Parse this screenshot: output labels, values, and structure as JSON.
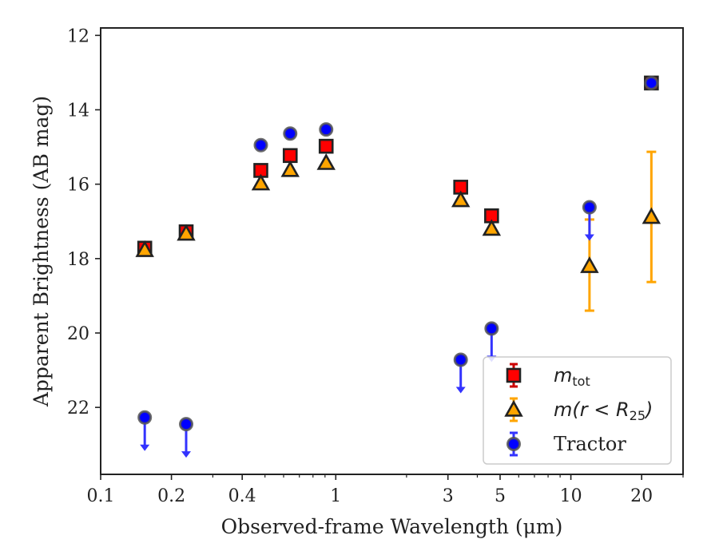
{
  "chart_data": {
    "type": "scatter",
    "xlabel": "Observed-frame Wavelength (μm)",
    "ylabel": "Apparent Brightness (AB mag)",
    "xscale": "log",
    "xlim": [
      0.1,
      30
    ],
    "ylim": [
      23.8,
      11.8
    ],
    "x_ticks": [
      0.1,
      0.2,
      0.4,
      1,
      3,
      5,
      10,
      20
    ],
    "x_tick_labels": [
      "0.1",
      "0.2",
      "0.4",
      "1",
      "3",
      "5",
      "10",
      "20"
    ],
    "y_ticks": [
      12,
      14,
      16,
      18,
      20,
      22
    ],
    "y_tick_labels": [
      "12",
      "14",
      "16",
      "18",
      "20",
      "22"
    ],
    "legend": {
      "position": "lower right",
      "entries": [
        {
          "label_main": "m",
          "label_sub": "tot",
          "label_rest": ""
        },
        {
          "label_main": "m(r < R",
          "label_sub": "25",
          "label_rest": ")"
        },
        {
          "label_main": "Tractor",
          "label_sub": "",
          "label_rest": ""
        }
      ]
    },
    "series": [
      {
        "name": "m_tot",
        "marker": "square",
        "color": "#ff0000",
        "error_color": "#cc0000",
        "points": [
          {
            "x": 0.154,
            "y": 17.72
          },
          {
            "x": 0.231,
            "y": 17.28
          },
          {
            "x": 0.48,
            "y": 15.63
          },
          {
            "x": 0.64,
            "y": 15.23
          },
          {
            "x": 0.91,
            "y": 14.98
          },
          {
            "x": 3.4,
            "y": 16.08
          },
          {
            "x": 4.6,
            "y": 16.85
          },
          {
            "x": 22.0,
            "y": 13.28
          }
        ]
      },
      {
        "name": "m(r<R25)",
        "marker": "triangle",
        "color": "#ffa500",
        "error_color": "#ffa500",
        "points": [
          {
            "x": 0.154,
            "y": 17.77
          },
          {
            "x": 0.231,
            "y": 17.33
          },
          {
            "x": 0.48,
            "y": 15.98
          },
          {
            "x": 0.64,
            "y": 15.62
          },
          {
            "x": 0.91,
            "y": 15.43
          },
          {
            "x": 3.4,
            "y": 16.43
          },
          {
            "x": 4.6,
            "y": 17.2
          },
          {
            "x": 12.0,
            "y": 18.2,
            "err_lo": 1.25,
            "err_hi": 1.2
          },
          {
            "x": 22.0,
            "y": 16.88,
            "err_lo": 1.75,
            "err_hi": 1.75
          }
        ]
      },
      {
        "name": "Tractor",
        "marker": "circle",
        "color": "#0000ff",
        "error_color": "#3333ff",
        "points": [
          {
            "x": 0.154,
            "y": 22.27,
            "upper_limit": true
          },
          {
            "x": 0.231,
            "y": 22.45,
            "upper_limit": true
          },
          {
            "x": 0.48,
            "y": 14.95
          },
          {
            "x": 0.64,
            "y": 14.64
          },
          {
            "x": 0.91,
            "y": 14.53
          },
          {
            "x": 3.4,
            "y": 20.72,
            "upper_limit": true
          },
          {
            "x": 4.6,
            "y": 19.88,
            "upper_limit": true
          },
          {
            "x": 12.0,
            "y": 16.62,
            "upper_limit": true
          },
          {
            "x": 22.0,
            "y": 13.28
          }
        ]
      }
    ]
  }
}
